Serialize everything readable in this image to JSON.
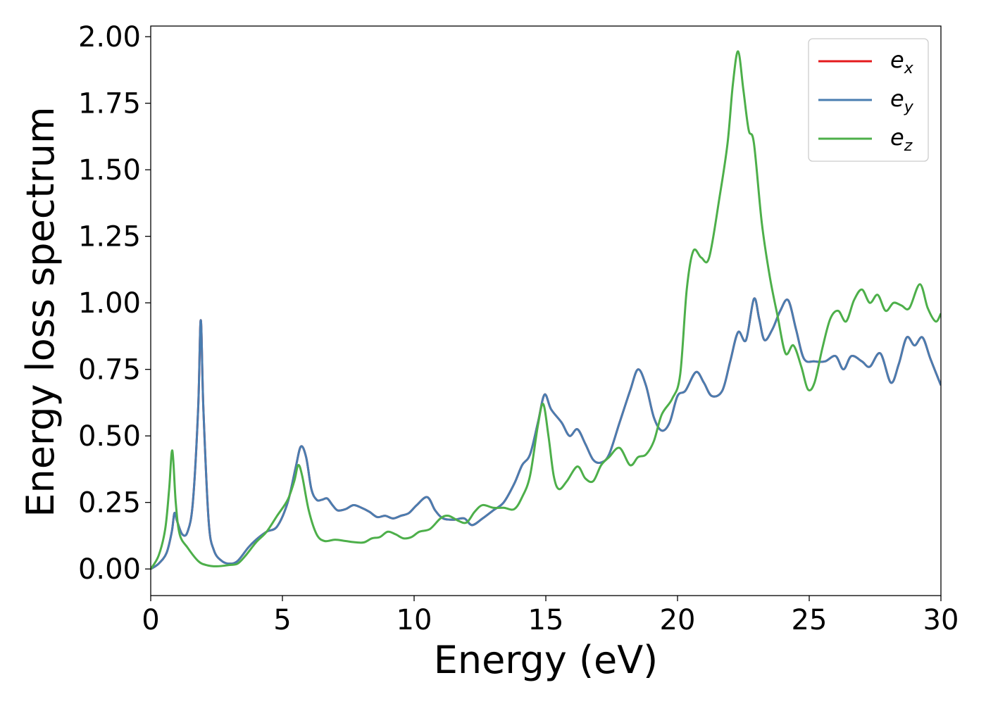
{
  "chart_data": {
    "type": "line",
    "title": "",
    "xlabel": "Energy (eV)",
    "ylabel": "Energy loss spectrum",
    "xlim": [
      0,
      30
    ],
    "ylim": [
      -0.1,
      2.04
    ],
    "x_ticks": [
      0,
      5,
      10,
      15,
      20,
      25,
      30
    ],
    "x_tick_labels": [
      "0",
      "5",
      "10",
      "15",
      "20",
      "25",
      "30"
    ],
    "y_ticks": [
      0.0,
      0.25,
      0.5,
      0.75,
      1.0,
      1.25,
      1.5,
      1.75,
      2.0
    ],
    "y_tick_labels": [
      "0.00",
      "0.25",
      "0.50",
      "0.75",
      "1.00",
      "1.25",
      "1.50",
      "1.75",
      "2.00"
    ],
    "grid": false,
    "legend_position": "top-right",
    "series": [
      {
        "name": "e_x",
        "label_main": "e",
        "label_sub": "x",
        "color": "#e41a1c",
        "points": [
          [
            0,
            0
          ],
          [
            0.3,
            0.02
          ],
          [
            0.6,
            0.06
          ],
          [
            0.8,
            0.14
          ],
          [
            0.9,
            0.21
          ],
          [
            1.0,
            0.18
          ],
          [
            1.2,
            0.13
          ],
          [
            1.4,
            0.14
          ],
          [
            1.6,
            0.25
          ],
          [
            1.8,
            0.6
          ],
          [
            1.9,
            0.935
          ],
          [
            2.0,
            0.6
          ],
          [
            2.2,
            0.18
          ],
          [
            2.4,
            0.07
          ],
          [
            2.7,
            0.03
          ],
          [
            3.0,
            0.02
          ],
          [
            3.3,
            0.03
          ],
          [
            3.7,
            0.08
          ],
          [
            4.0,
            0.11
          ],
          [
            4.4,
            0.14
          ],
          [
            4.8,
            0.16
          ],
          [
            5.2,
            0.25
          ],
          [
            5.5,
            0.38
          ],
          [
            5.7,
            0.46
          ],
          [
            5.9,
            0.42
          ],
          [
            6.1,
            0.3
          ],
          [
            6.3,
            0.26
          ],
          [
            6.5,
            0.26
          ],
          [
            6.7,
            0.265
          ],
          [
            6.9,
            0.24
          ],
          [
            7.1,
            0.22
          ],
          [
            7.4,
            0.225
          ],
          [
            7.7,
            0.24
          ],
          [
            8.0,
            0.23
          ],
          [
            8.3,
            0.215
          ],
          [
            8.6,
            0.195
          ],
          [
            8.9,
            0.2
          ],
          [
            9.2,
            0.19
          ],
          [
            9.5,
            0.2
          ],
          [
            9.8,
            0.21
          ],
          [
            10.1,
            0.24
          ],
          [
            10.5,
            0.27
          ],
          [
            10.8,
            0.22
          ],
          [
            11.1,
            0.19
          ],
          [
            11.5,
            0.185
          ],
          [
            11.9,
            0.19
          ],
          [
            12.2,
            0.165
          ],
          [
            12.6,
            0.19
          ],
          [
            13.0,
            0.22
          ],
          [
            13.4,
            0.25
          ],
          [
            13.8,
            0.32
          ],
          [
            14.1,
            0.39
          ],
          [
            14.4,
            0.43
          ],
          [
            14.7,
            0.55
          ],
          [
            14.95,
            0.655
          ],
          [
            15.2,
            0.6
          ],
          [
            15.6,
            0.55
          ],
          [
            15.9,
            0.5
          ],
          [
            16.2,
            0.525
          ],
          [
            16.5,
            0.47
          ],
          [
            16.8,
            0.41
          ],
          [
            17.1,
            0.4
          ],
          [
            17.4,
            0.43
          ],
          [
            17.8,
            0.55
          ],
          [
            18.2,
            0.67
          ],
          [
            18.5,
            0.75
          ],
          [
            18.8,
            0.69
          ],
          [
            19.1,
            0.57
          ],
          [
            19.4,
            0.52
          ],
          [
            19.7,
            0.55
          ],
          [
            20.0,
            0.65
          ],
          [
            20.3,
            0.67
          ],
          [
            20.7,
            0.74
          ],
          [
            21.0,
            0.7
          ],
          [
            21.3,
            0.65
          ],
          [
            21.7,
            0.67
          ],
          [
            22.0,
            0.78
          ],
          [
            22.3,
            0.89
          ],
          [
            22.6,
            0.86
          ],
          [
            22.9,
            1.015
          ],
          [
            23.1,
            0.94
          ],
          [
            23.3,
            0.86
          ],
          [
            23.6,
            0.9
          ],
          [
            23.9,
            0.97
          ],
          [
            24.2,
            1.01
          ],
          [
            24.5,
            0.9
          ],
          [
            24.8,
            0.79
          ],
          [
            25.2,
            0.78
          ],
          [
            25.6,
            0.78
          ],
          [
            26.0,
            0.8
          ],
          [
            26.3,
            0.75
          ],
          [
            26.6,
            0.8
          ],
          [
            27.0,
            0.78
          ],
          [
            27.3,
            0.76
          ],
          [
            27.7,
            0.81
          ],
          [
            28.1,
            0.7
          ],
          [
            28.4,
            0.77
          ],
          [
            28.7,
            0.87
          ],
          [
            29.0,
            0.84
          ],
          [
            29.3,
            0.87
          ],
          [
            29.6,
            0.79
          ],
          [
            30.0,
            0.69
          ]
        ]
      },
      {
        "name": "e_y",
        "label_main": "e",
        "label_sub": "y",
        "color": "#4a7db0",
        "points": [
          [
            0,
            0
          ],
          [
            0.3,
            0.02
          ],
          [
            0.6,
            0.06
          ],
          [
            0.8,
            0.14
          ],
          [
            0.9,
            0.21
          ],
          [
            1.0,
            0.18
          ],
          [
            1.2,
            0.13
          ],
          [
            1.4,
            0.14
          ],
          [
            1.6,
            0.25
          ],
          [
            1.8,
            0.6
          ],
          [
            1.9,
            0.935
          ],
          [
            2.0,
            0.6
          ],
          [
            2.2,
            0.18
          ],
          [
            2.4,
            0.07
          ],
          [
            2.7,
            0.03
          ],
          [
            3.0,
            0.02
          ],
          [
            3.3,
            0.03
          ],
          [
            3.7,
            0.08
          ],
          [
            4.0,
            0.11
          ],
          [
            4.4,
            0.14
          ],
          [
            4.8,
            0.16
          ],
          [
            5.2,
            0.25
          ],
          [
            5.5,
            0.38
          ],
          [
            5.7,
            0.46
          ],
          [
            5.9,
            0.42
          ],
          [
            6.1,
            0.3
          ],
          [
            6.3,
            0.26
          ],
          [
            6.5,
            0.26
          ],
          [
            6.7,
            0.265
          ],
          [
            6.9,
            0.24
          ],
          [
            7.1,
            0.22
          ],
          [
            7.4,
            0.225
          ],
          [
            7.7,
            0.24
          ],
          [
            8.0,
            0.23
          ],
          [
            8.3,
            0.215
          ],
          [
            8.6,
            0.195
          ],
          [
            8.9,
            0.2
          ],
          [
            9.2,
            0.19
          ],
          [
            9.5,
            0.2
          ],
          [
            9.8,
            0.21
          ],
          [
            10.1,
            0.24
          ],
          [
            10.5,
            0.27
          ],
          [
            10.8,
            0.22
          ],
          [
            11.1,
            0.19
          ],
          [
            11.5,
            0.185
          ],
          [
            11.9,
            0.19
          ],
          [
            12.2,
            0.165
          ],
          [
            12.6,
            0.19
          ],
          [
            13.0,
            0.22
          ],
          [
            13.4,
            0.25
          ],
          [
            13.8,
            0.32
          ],
          [
            14.1,
            0.39
          ],
          [
            14.4,
            0.43
          ],
          [
            14.7,
            0.55
          ],
          [
            14.95,
            0.655
          ],
          [
            15.2,
            0.6
          ],
          [
            15.6,
            0.55
          ],
          [
            15.9,
            0.5
          ],
          [
            16.2,
            0.525
          ],
          [
            16.5,
            0.47
          ],
          [
            16.8,
            0.41
          ],
          [
            17.1,
            0.4
          ],
          [
            17.4,
            0.43
          ],
          [
            17.8,
            0.55
          ],
          [
            18.2,
            0.67
          ],
          [
            18.5,
            0.75
          ],
          [
            18.8,
            0.69
          ],
          [
            19.1,
            0.57
          ],
          [
            19.4,
            0.52
          ],
          [
            19.7,
            0.55
          ],
          [
            20.0,
            0.65
          ],
          [
            20.3,
            0.67
          ],
          [
            20.7,
            0.74
          ],
          [
            21.0,
            0.7
          ],
          [
            21.3,
            0.65
          ],
          [
            21.7,
            0.67
          ],
          [
            22.0,
            0.78
          ],
          [
            22.3,
            0.89
          ],
          [
            22.6,
            0.86
          ],
          [
            22.9,
            1.015
          ],
          [
            23.1,
            0.94
          ],
          [
            23.3,
            0.86
          ],
          [
            23.6,
            0.9
          ],
          [
            23.9,
            0.97
          ],
          [
            24.2,
            1.01
          ],
          [
            24.5,
            0.9
          ],
          [
            24.8,
            0.79
          ],
          [
            25.2,
            0.78
          ],
          [
            25.6,
            0.78
          ],
          [
            26.0,
            0.8
          ],
          [
            26.3,
            0.75
          ],
          [
            26.6,
            0.8
          ],
          [
            27.0,
            0.78
          ],
          [
            27.3,
            0.76
          ],
          [
            27.7,
            0.81
          ],
          [
            28.1,
            0.7
          ],
          [
            28.4,
            0.77
          ],
          [
            28.7,
            0.87
          ],
          [
            29.0,
            0.84
          ],
          [
            29.3,
            0.87
          ],
          [
            29.6,
            0.79
          ],
          [
            30.0,
            0.69
          ]
        ]
      },
      {
        "name": "e_z",
        "label_main": "e",
        "label_sub": "z",
        "color": "#4daf4a",
        "points": [
          [
            0,
            0
          ],
          [
            0.3,
            0.05
          ],
          [
            0.55,
            0.15
          ],
          [
            0.7,
            0.3
          ],
          [
            0.82,
            0.445
          ],
          [
            0.95,
            0.25
          ],
          [
            1.1,
            0.13
          ],
          [
            1.4,
            0.08
          ],
          [
            1.8,
            0.03
          ],
          [
            2.1,
            0.015
          ],
          [
            2.5,
            0.01
          ],
          [
            3.0,
            0.015
          ],
          [
            3.3,
            0.02
          ],
          [
            3.6,
            0.05
          ],
          [
            4.0,
            0.1
          ],
          [
            4.4,
            0.14
          ],
          [
            4.8,
            0.2
          ],
          [
            5.2,
            0.26
          ],
          [
            5.45,
            0.33
          ],
          [
            5.6,
            0.39
          ],
          [
            5.75,
            0.35
          ],
          [
            6.0,
            0.22
          ],
          [
            6.3,
            0.13
          ],
          [
            6.6,
            0.105
          ],
          [
            7.0,
            0.11
          ],
          [
            7.4,
            0.105
          ],
          [
            7.8,
            0.1
          ],
          [
            8.1,
            0.1
          ],
          [
            8.4,
            0.115
          ],
          [
            8.7,
            0.12
          ],
          [
            9.0,
            0.14
          ],
          [
            9.3,
            0.13
          ],
          [
            9.6,
            0.115
          ],
          [
            9.9,
            0.12
          ],
          [
            10.2,
            0.14
          ],
          [
            10.6,
            0.15
          ],
          [
            11.0,
            0.19
          ],
          [
            11.3,
            0.2
          ],
          [
            11.7,
            0.18
          ],
          [
            12.0,
            0.175
          ],
          [
            12.3,
            0.215
          ],
          [
            12.6,
            0.24
          ],
          [
            13.0,
            0.23
          ],
          [
            13.4,
            0.23
          ],
          [
            13.8,
            0.225
          ],
          [
            14.1,
            0.27
          ],
          [
            14.4,
            0.35
          ],
          [
            14.7,
            0.54
          ],
          [
            14.9,
            0.62
          ],
          [
            15.1,
            0.5
          ],
          [
            15.3,
            0.35
          ],
          [
            15.5,
            0.3
          ],
          [
            15.8,
            0.33
          ],
          [
            16.2,
            0.385
          ],
          [
            16.5,
            0.34
          ],
          [
            16.8,
            0.33
          ],
          [
            17.1,
            0.39
          ],
          [
            17.4,
            0.42
          ],
          [
            17.8,
            0.455
          ],
          [
            18.2,
            0.39
          ],
          [
            18.5,
            0.42
          ],
          [
            18.8,
            0.43
          ],
          [
            19.1,
            0.48
          ],
          [
            19.4,
            0.58
          ],
          [
            19.8,
            0.64
          ],
          [
            20.1,
            0.73
          ],
          [
            20.35,
            1.05
          ],
          [
            20.6,
            1.195
          ],
          [
            20.9,
            1.17
          ],
          [
            21.2,
            1.17
          ],
          [
            21.6,
            1.4
          ],
          [
            21.9,
            1.6
          ],
          [
            22.1,
            1.82
          ],
          [
            22.3,
            1.945
          ],
          [
            22.5,
            1.8
          ],
          [
            22.7,
            1.65
          ],
          [
            22.9,
            1.6
          ],
          [
            23.2,
            1.3
          ],
          [
            23.5,
            1.1
          ],
          [
            23.8,
            0.95
          ],
          [
            24.1,
            0.81
          ],
          [
            24.4,
            0.84
          ],
          [
            24.7,
            0.76
          ],
          [
            24.95,
            0.675
          ],
          [
            25.2,
            0.7
          ],
          [
            25.5,
            0.83
          ],
          [
            25.8,
            0.94
          ],
          [
            26.1,
            0.97
          ],
          [
            26.4,
            0.93
          ],
          [
            26.7,
            1.01
          ],
          [
            27.0,
            1.05
          ],
          [
            27.3,
            1.0
          ],
          [
            27.6,
            1.03
          ],
          [
            27.9,
            0.97
          ],
          [
            28.2,
            1.0
          ],
          [
            28.5,
            0.99
          ],
          [
            28.8,
            0.98
          ],
          [
            29.2,
            1.07
          ],
          [
            29.5,
            0.98
          ],
          [
            29.8,
            0.93
          ],
          [
            30.0,
            0.96
          ]
        ]
      }
    ]
  }
}
